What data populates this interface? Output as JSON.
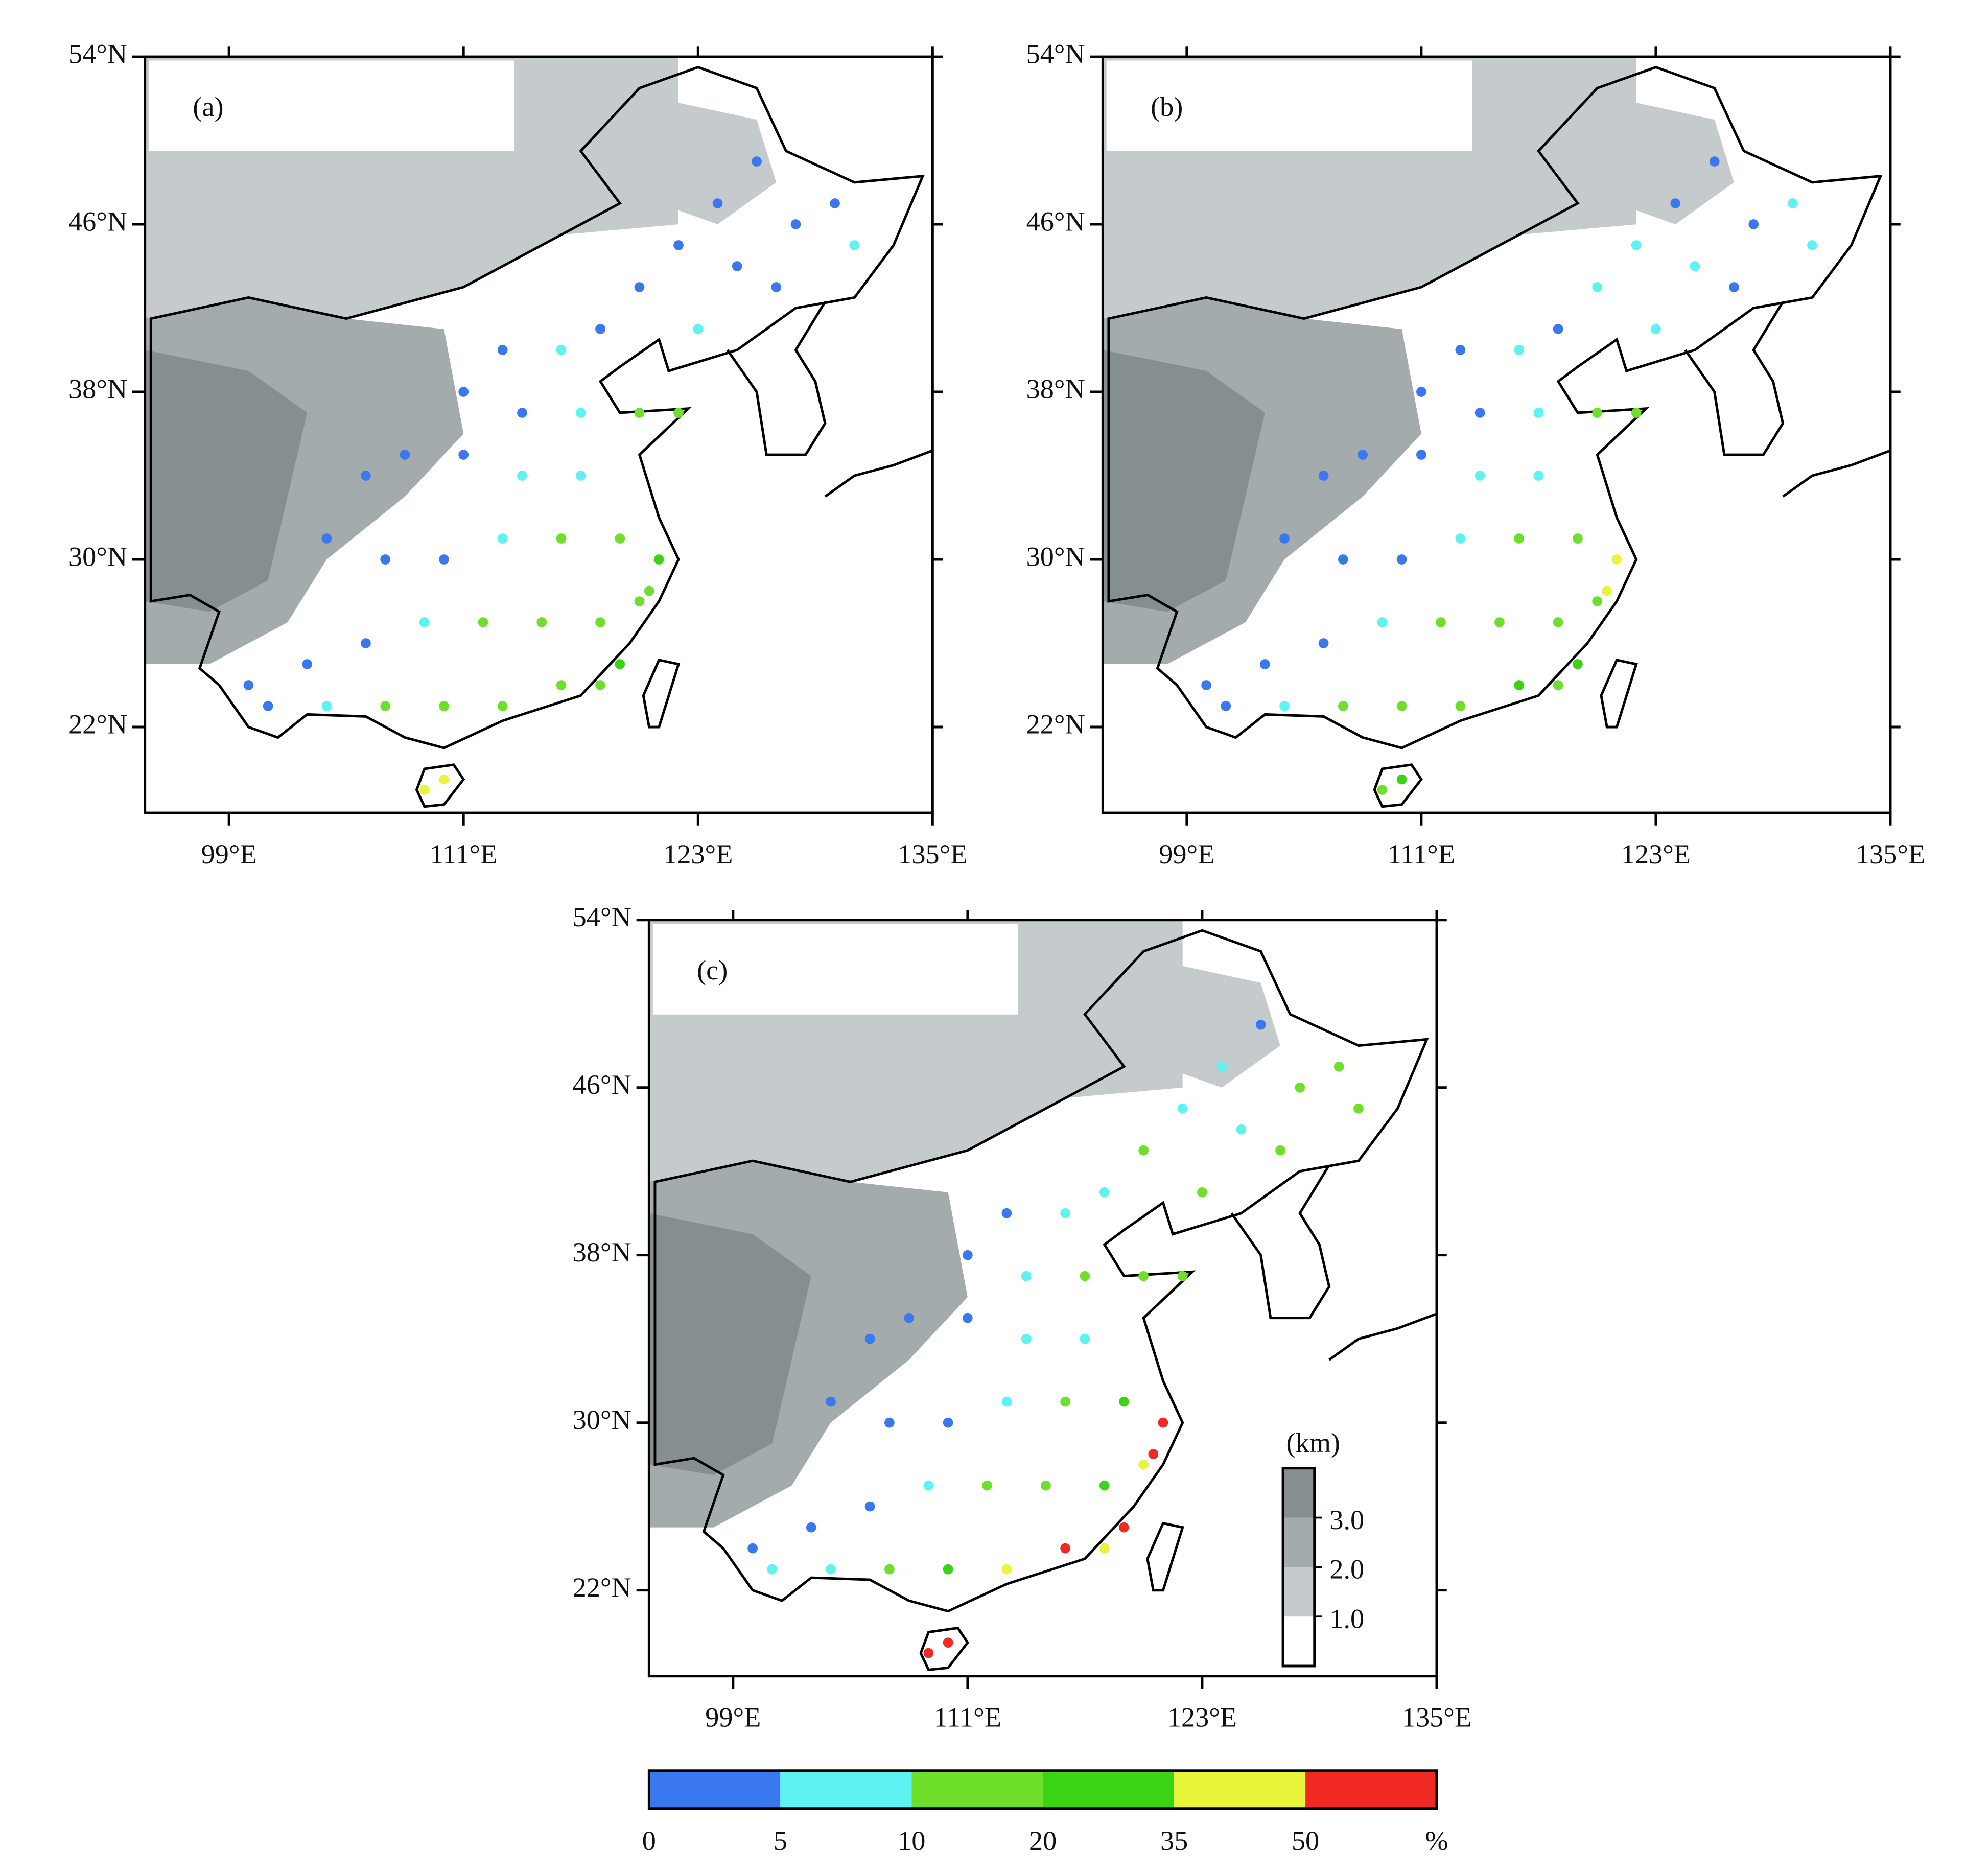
{
  "panels": [
    {
      "label": "(a)",
      "classes": [
        0,
        0,
        0,
        0,
        0,
        0,
        1,
        0,
        0,
        1,
        0,
        1,
        0,
        0,
        0,
        1,
        2,
        2,
        1,
        1,
        0,
        0,
        0,
        0,
        0,
        0,
        1,
        2,
        2,
        3,
        2,
        2,
        2,
        2,
        1,
        0,
        0,
        0,
        0,
        1,
        2,
        2,
        2,
        2,
        3,
        4,
        4,
        2,
        2
      ]
    },
    {
      "label": "(b)",
      "classes": [
        0,
        0,
        0,
        1,
        1,
        0,
        1,
        1,
        1,
        1,
        0,
        1,
        0,
        0,
        0,
        1,
        2,
        2,
        1,
        1,
        0,
        0,
        0,
        0,
        0,
        0,
        1,
        2,
        2,
        4,
        2,
        2,
        2,
        2,
        1,
        0,
        0,
        0,
        0,
        1,
        2,
        2,
        2,
        3,
        3,
        3,
        2,
        4,
        2
      ]
    },
    {
      "label": "(c)",
      "classes": [
        0,
        1,
        2,
        2,
        1,
        2,
        2,
        1,
        2,
        2,
        1,
        1,
        0,
        0,
        1,
        2,
        2,
        2,
        1,
        1,
        0,
        0,
        0,
        0,
        0,
        0,
        1,
        2,
        3,
        5,
        4,
        3,
        2,
        2,
        1,
        0,
        0,
        0,
        1,
        1,
        2,
        3,
        4,
        5,
        5,
        5,
        5,
        5,
        4
      ]
    }
  ],
  "map": {
    "xlim": [
      94.7,
      135
    ],
    "ylim": [
      17.9,
      54
    ],
    "xticks": [
      {
        "value": 99,
        "label": "99°E"
      },
      {
        "value": 111,
        "label": "111°E"
      },
      {
        "value": 123,
        "label": "123°E"
      },
      {
        "value": 135,
        "label": "135°E"
      }
    ],
    "yticks": [
      {
        "value": 54,
        "label": "54°N"
      },
      {
        "value": 46,
        "label": "46°N"
      },
      {
        "value": 38,
        "label": "38°N"
      },
      {
        "value": 30,
        "label": "30°N"
      },
      {
        "value": 22,
        "label": "22°N"
      }
    ]
  },
  "stations": {
    "lon": [
      126,
      124,
      128,
      130,
      125,
      127,
      131,
      122,
      120,
      123,
      118,
      116,
      113,
      111,
      114,
      117,
      120,
      122,
      117,
      114,
      111,
      108,
      106,
      104,
      107,
      110,
      113,
      116,
      119,
      121,
      120,
      118,
      115,
      112,
      109,
      106,
      103,
      100,
      101,
      104,
      107,
      110,
      113,
      116,
      119,
      110,
      109,
      120.5,
      118
    ],
    "lat": [
      49,
      47,
      46,
      47,
      44,
      43,
      45,
      45,
      43,
      41,
      41,
      40,
      40,
      38,
      37,
      37,
      37,
      37,
      34,
      34,
      35,
      35,
      34,
      31,
      30,
      30,
      31,
      31,
      31,
      30,
      28,
      27,
      27,
      27,
      27,
      26,
      25,
      24,
      23,
      23,
      23,
      23,
      23,
      24,
      25,
      19.5,
      19,
      28.5,
      24
    ]
  },
  "colorbar": {
    "bounds": [
      0,
      5,
      10,
      20,
      35,
      50
    ],
    "unit": "%",
    "colors": [
      "#3a78f0",
      "#5ef2f2",
      "#6ee02c",
      "#3ad414",
      "#e8f53a",
      "#f02a22"
    ]
  },
  "elevation_legend": {
    "title": "(km)",
    "lim": [
      0,
      4
    ],
    "ticks": [
      {
        "value": 3,
        "label": "3.0"
      },
      {
        "value": 2,
        "label": "2.0"
      },
      {
        "value": 1,
        "label": "1.0"
      }
    ],
    "colors": [
      "#ffffff",
      "#c5cbcc",
      "#a3abad",
      "#858f91"
    ]
  }
}
